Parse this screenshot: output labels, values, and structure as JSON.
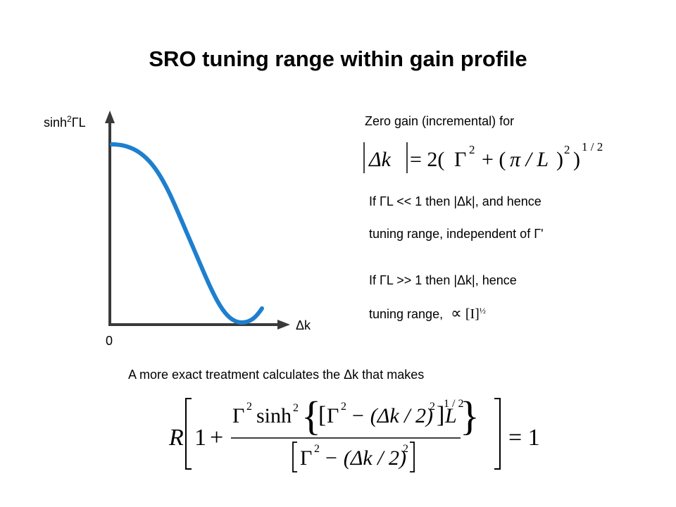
{
  "title": "SRO tuning range within gain profile",
  "graph": {
    "y_axis_label_prefix": "sinh",
    "y_axis_label_sup": "2",
    "y_axis_label_suffix": "ΓL",
    "x_axis_label": "Δk",
    "origin_label": "0",
    "curve_color": "#1e7fcf"
  },
  "zero_gain_text": "Zero gain (incremental) for",
  "eq1": {
    "lhs": "Δk",
    "eq": "= 2(",
    "gamma": "Γ",
    "sq1": "2",
    "plus": "+ (",
    "pi_over_L": "π / L",
    "close": ")",
    "sq2": "2",
    "close2": ")",
    "exp": "1 / 2"
  },
  "note1_line1": "If ΓL << 1  then |Δk|, and hence",
  "note1_line2": "tuning range, independent of Γ'",
  "note2_line1": "If ΓL >> 1  then |Δk|, hence",
  "note2_line2": "tuning range,",
  "prop_symbol": "∝",
  "intensity": "[I]",
  "half": "½",
  "exact_text": "A more exact treatment calculates the Δk that makes",
  "eq2": {
    "R": "R",
    "one": "1",
    "plus": "+",
    "gamma": "Γ",
    "sq": "2",
    "sinh": "sinh",
    "sinh_sq": "2",
    "minus_dk": "− (Δk / 2)",
    "half_exp": "1 / 2",
    "L": "L",
    "equals_one": "= 1"
  }
}
